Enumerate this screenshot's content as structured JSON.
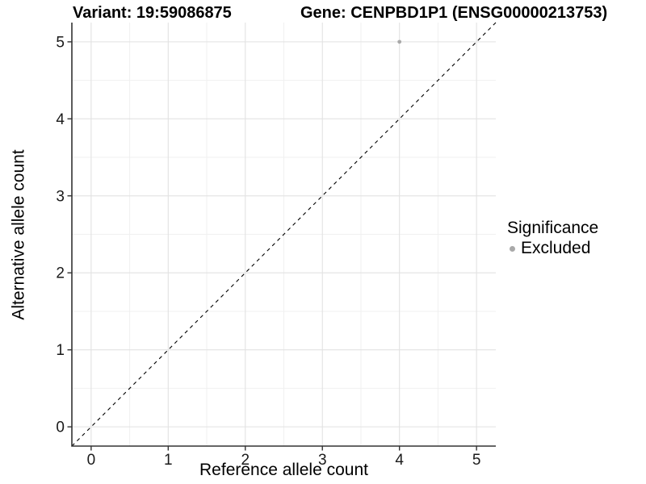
{
  "chart_data": {
    "type": "scatter",
    "title_left": "Variant: 19:59086875",
    "title_right": "Gene: CENPBD1P1 (ENSG00000213753)",
    "xlabel": "Reference allele count",
    "ylabel": "Alternative allele count",
    "xlim": [
      -0.25,
      5.25
    ],
    "ylim": [
      -0.25,
      5.25
    ],
    "x_ticks": [
      0,
      1,
      2,
      3,
      4,
      5
    ],
    "y_ticks": [
      0,
      1,
      2,
      3,
      4,
      5
    ],
    "x_minor_ticks": [
      0.5,
      1.5,
      2.5,
      3.5,
      4.5
    ],
    "y_minor_ticks": [
      0.5,
      1.5,
      2.5,
      3.5,
      4.5
    ],
    "grid": "major+minor",
    "reference_line": {
      "kind": "identity",
      "style": "dashed",
      "color": "#000000"
    },
    "series": [
      {
        "name": "Excluded",
        "color": "#a9a9a9",
        "point_radius": 2.4,
        "points": [
          {
            "x": 4,
            "y": 5
          }
        ]
      }
    ],
    "legend": {
      "title": "Significance",
      "position": "right",
      "entries": [
        {
          "label": "Excluded",
          "color": "#a9a9a9"
        }
      ]
    },
    "colors": {
      "background": "#ffffff",
      "grid_major": "#e2e2e2",
      "grid_minor": "#f0f0f0",
      "axis_line": "#333333",
      "tick_text": "#1a1a1a",
      "point": "#a9a9a9"
    }
  }
}
